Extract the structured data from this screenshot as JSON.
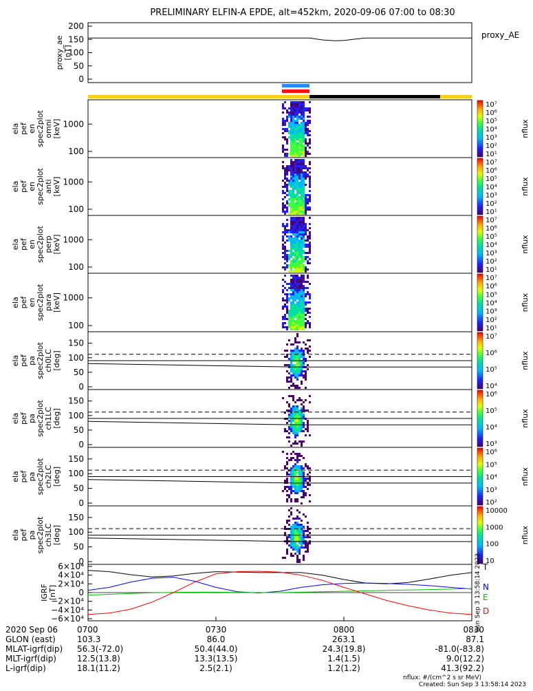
{
  "title": "PRELIMINARY ELFIN-A EPDE, alt=452km, 2020-09-06 07:00 to 08:30",
  "chart_data": [
    {
      "type": "line",
      "panel": "proxy_ae",
      "ylabel_lines": [
        "proxy_ae",
        "[nT]"
      ],
      "legend": "proxy_AE",
      "ylim": [
        0,
        200
      ],
      "yticks": [
        "200",
        "150",
        "100",
        "50",
        "0"
      ],
      "series": [
        {
          "t": [
            0,
            5,
            10,
            15,
            20,
            25,
            30,
            35,
            40,
            45,
            50,
            52,
            55,
            58,
            60,
            62,
            65,
            70,
            75,
            80,
            85,
            90
          ],
          "values": [
            155,
            155,
            155,
            155,
            155,
            155,
            155,
            155,
            155,
            155,
            155,
            155,
            148,
            145,
            146,
            150,
            155,
            155,
            155,
            155,
            155,
            155
          ]
        }
      ]
    },
    {
      "type": "heatmap",
      "panel": "energy-omni",
      "ylabel_lines": [
        "ela",
        "pef",
        "en",
        "spec2plot",
        "omni",
        "[keV]"
      ],
      "yscale": "log",
      "yticks": [
        "1000",
        "100"
      ],
      "colorbar_label": "nflux",
      "colorbar_ticks": [
        "10⁷",
        "10⁶",
        "10⁵",
        "10⁴",
        "10³",
        "10²",
        "10¹"
      ]
    },
    {
      "type": "heatmap",
      "panel": "energy-anti",
      "ylabel_lines": [
        "ela",
        "pef",
        "en",
        "spec2plot",
        "anti",
        "[keV]"
      ],
      "yscale": "log",
      "yticks": [
        "1000",
        "100"
      ],
      "colorbar_label": "nflux",
      "colorbar_ticks": [
        "10⁷",
        "10⁶",
        "10⁵",
        "10⁴",
        "10³",
        "10²",
        "10¹"
      ]
    },
    {
      "type": "heatmap",
      "panel": "energy-perp",
      "ylabel_lines": [
        "ela",
        "pef",
        "en",
        "spec2plot",
        "perp",
        "[keV]"
      ],
      "yscale": "log",
      "yticks": [
        "1000",
        "100"
      ],
      "colorbar_label": "nflux",
      "colorbar_ticks": [
        "10⁷",
        "10⁶",
        "10⁵",
        "10⁴",
        "10³",
        "10²",
        "10¹"
      ]
    },
    {
      "type": "heatmap",
      "panel": "energy-para",
      "ylabel_lines": [
        "ela",
        "pef",
        "en",
        "spec2plot",
        "para",
        "[keV]"
      ],
      "yscale": "log",
      "yticks": [
        "1000",
        "100"
      ],
      "colorbar_label": "nflux",
      "colorbar_ticks": [
        "10⁷",
        "10⁶",
        "10⁵",
        "10⁴",
        "10³",
        "10²",
        "10¹"
      ]
    },
    {
      "type": "heatmap",
      "panel": "pa-ch0LC",
      "ylabel_lines": [
        "ela",
        "pef",
        "pa",
        "spec2plot",
        "ch0LC",
        "[deg]"
      ],
      "ylim": [
        0,
        180
      ],
      "yticks": [
        "150",
        "100",
        "50",
        "0"
      ],
      "colorbar_label": "nflux",
      "colorbar_ticks": [
        "10⁷",
        "10⁶",
        "10⁵",
        "10⁴"
      ]
    },
    {
      "type": "heatmap",
      "panel": "pa-ch1LC",
      "ylabel_lines": [
        "ela",
        "pef",
        "pa",
        "spec2plot",
        "ch1LC",
        "[deg]"
      ],
      "ylim": [
        0,
        180
      ],
      "yticks": [
        "150",
        "100",
        "50",
        "0"
      ],
      "colorbar_label": "nflux",
      "colorbar_ticks": [
        "10⁶",
        "10⁵",
        "10⁴",
        "10³"
      ]
    },
    {
      "type": "heatmap",
      "panel": "pa-ch2LC",
      "ylabel_lines": [
        "ela",
        "pef",
        "pa",
        "spec2plot",
        "ch2LC",
        "[deg]"
      ],
      "ylim": [
        0,
        180
      ],
      "yticks": [
        "150",
        "100",
        "50",
        "0"
      ],
      "colorbar_label": "nflux",
      "colorbar_ticks": [
        "10⁶",
        "10⁵",
        "10⁴",
        "10³",
        "10²"
      ]
    },
    {
      "type": "heatmap",
      "panel": "pa-ch3LC",
      "ylabel_lines": [
        "ela",
        "pef",
        "pa",
        "spec2plot",
        "ch3LC",
        "[deg]"
      ],
      "ylim": [
        0,
        180
      ],
      "yticks": [
        "150",
        "100",
        "50",
        "0"
      ],
      "colorbar_label": "nflux",
      "colorbar_ticks": [
        "10000",
        "1000",
        "100",
        "10"
      ]
    },
    {
      "type": "line",
      "panel": "igrf",
      "ylabel_lines": [
        "IGRF",
        "[nT]"
      ],
      "ylim": [
        -60000,
        60000
      ],
      "yticks": [
        "6×10⁴",
        "4×10⁴",
        "2×10⁴",
        "0",
        "−2×10⁴",
        "−4×10⁴",
        "−6×10⁴"
      ],
      "series": [
        {
          "name": "T",
          "color": "#000000",
          "t": [
            0,
            5,
            10,
            15,
            20,
            25,
            30,
            35,
            40,
            45,
            50,
            55,
            60,
            65,
            70,
            75,
            80,
            85,
            90
          ],
          "values": [
            51000,
            48000,
            41000,
            36000,
            38000,
            44000,
            48000,
            47000,
            46000,
            46000,
            46000,
            40000,
            30000,
            22000,
            20000,
            23000,
            31000,
            40000,
            46000
          ]
        },
        {
          "name": "N",
          "color": "#0000ff",
          "t": [
            0,
            5,
            10,
            15,
            20,
            25,
            30,
            35,
            40,
            45,
            50,
            55,
            60,
            65,
            70,
            75,
            80,
            85,
            90
          ],
          "values": [
            5000,
            12000,
            24000,
            33000,
            35000,
            26000,
            12000,
            2000,
            -1000,
            3000,
            12000,
            18000,
            21000,
            22000,
            21000,
            19000,
            16000,
            12000,
            8000
          ]
        },
        {
          "name": "E",
          "color": "#00c000",
          "t": [
            0,
            5,
            10,
            15,
            20,
            25,
            30,
            35,
            40,
            45,
            50,
            55,
            60,
            65,
            70,
            75,
            80,
            85,
            90
          ],
          "values": [
            -6000,
            -4000,
            -2000,
            -500,
            500,
            1000,
            1000,
            500,
            0,
            0,
            1000,
            2000,
            3000,
            4000,
            5000,
            6000,
            7000,
            8000,
            9000
          ]
        },
        {
          "name": "D",
          "color": "#ff0000",
          "t": [
            0,
            5,
            10,
            15,
            20,
            25,
            30,
            35,
            40,
            45,
            50,
            55,
            60,
            65,
            70,
            75,
            80,
            85,
            90
          ],
          "values": [
            -50000,
            -47000,
            -38000,
            -22000,
            0,
            24000,
            43000,
            48000,
            49000,
            47000,
            40000,
            28000,
            12000,
            -3000,
            -18000,
            -30000,
            -40000,
            -47000,
            -50000
          ]
        }
      ]
    }
  ],
  "science_bar_labels": {
    "axis_note": "Sun Sep  3 13:58:14 2023"
  },
  "footer": {
    "rows": [
      {
        "label": "2020 Sep 06",
        "values": [
          "0700",
          "0730",
          "0800",
          "0830"
        ]
      },
      {
        "label": "GLON (east)",
        "values": [
          "103.3",
          "86.0",
          "263.1",
          "87.1"
        ]
      },
      {
        "label": "MLAT-igrf(dip)",
        "values": [
          "56.3(-72.0)",
          "50.4(44.0)",
          "24.3(19.8)",
          "-81.0(-83.8)"
        ]
      },
      {
        "label": "MLT-igrf(dip)",
        "values": [
          "12.5(13.8)",
          "13.3(13.5)",
          "1.4(1.5)",
          "9.0(12.2)"
        ]
      },
      {
        "label": "L-igrf(dip)",
        "values": [
          "18.1(11.2)",
          "2.5(2.1)",
          "1.2(1.2)",
          "41.3(92.2)"
        ]
      }
    ],
    "note_units": "nflux: #/(cm^2 s sr MeV)",
    "note_created": "Created: Sun Sep  3 13:58:14 2023"
  }
}
